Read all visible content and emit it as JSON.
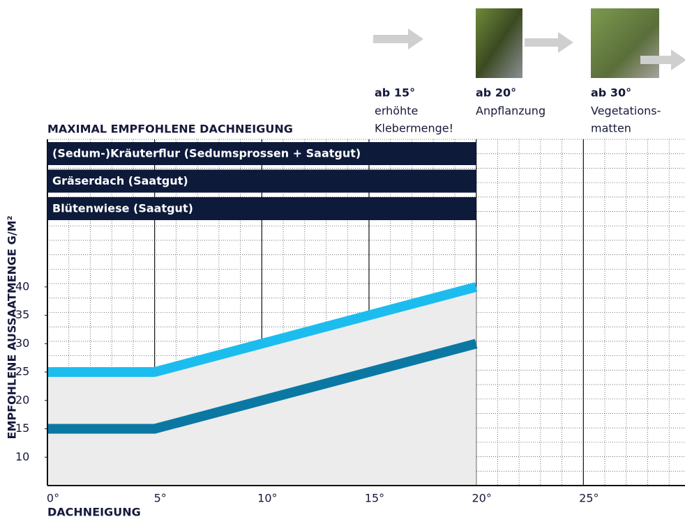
{
  "chart_data": {
    "type": "line",
    "title": "MAXIMAL EMPFOHLENE DACHNEIGUNG",
    "xlabel": "DACHNEIGUNG",
    "ylabel": "EMPFOHLENE AUSSAATMENGE G/M²",
    "x": [
      0,
      5,
      20
    ],
    "series": [
      {
        "color": "#1cbdee",
        "values": [
          25,
          25,
          40
        ]
      },
      {
        "color": "#0b78a4",
        "values": [
          15,
          15,
          30
        ]
      }
    ],
    "area_color": "#ececec",
    "xlim": [
      0,
      30
    ],
    "ylim": [
      5,
      66
    ],
    "xticks": [
      {
        "value": 0,
        "label": "0°"
      },
      {
        "value": 5,
        "label": "5°"
      },
      {
        "value": 10,
        "label": "10°"
      },
      {
        "value": 15,
        "label": "15°"
      },
      {
        "value": 20,
        "label": "20°"
      },
      {
        "value": 25,
        "label": "25°"
      },
      {
        "value": 30,
        "label": "30°"
      }
    ],
    "yticks": [
      10,
      15,
      20,
      25,
      30,
      35,
      40
    ],
    "grid": true,
    "bands": [
      {
        "label": "(Sedum-)Kräuterflur (Sedumsprossen + Saatgut)",
        "max": 20
      },
      {
        "label": "Gräserdach (Saatgut)",
        "max": 20
      },
      {
        "label": "Blütenwiese (Saatgut)",
        "max": 20
      }
    ],
    "band_color": "#0d1a3a",
    "annotations": [
      {
        "heading": "ab 15°",
        "lines": [
          "erhöhte",
          "Klebermenge!"
        ]
      },
      {
        "heading": "ab 20°",
        "lines": [
          "Anpflanzung"
        ]
      },
      {
        "heading": "ab 30°",
        "lines": [
          "Vegetations-",
          "matten"
        ]
      }
    ]
  }
}
